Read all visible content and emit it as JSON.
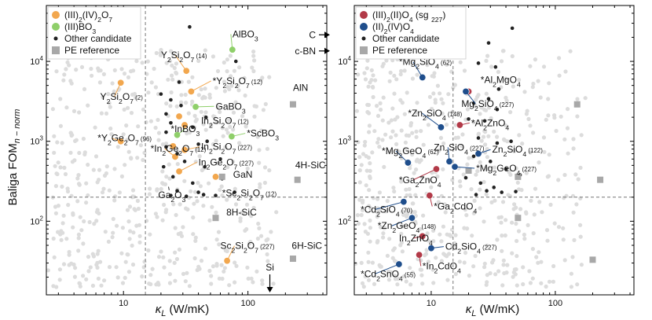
{
  "figure": {
    "ylabel_main": "Baliga FOM",
    "ylabel_sub": "n − norm",
    "xlabel_main": "κ",
    "xlabel_sub": "L",
    "xlabel_unit": " (W/mK)"
  },
  "chart_data": [
    {
      "type": "scatter",
      "panel": "left",
      "xscale": "log",
      "yscale": "log",
      "xlim": [
        2.4,
        430
      ],
      "ylim": [
        12,
        50000
      ],
      "xticks": [
        10,
        100
      ],
      "yticks": [
        100,
        1000,
        10000
      ],
      "dashed_x": 15,
      "dashed_y": 200,
      "legend": [
        {
          "label": "(III)2(IV)2O7",
          "color": "#f2a74e",
          "kind": "circle"
        },
        {
          "label": "(III)BO3",
          "color": "#8fcf6a",
          "kind": "circle"
        },
        {
          "label": "Other candidate",
          "color": "#222222",
          "kind": "dot"
        },
        {
          "label": "PE reference",
          "color": "#a8a8a8",
          "kind": "square"
        }
      ],
      "series": [
        {
          "name": "(III)2(IV)2O7",
          "color": "#f2a74e",
          "points": [
            {
              "x": 9.5,
              "y": 5400,
              "label": "Y2Si2O7 (2)",
              "lx": 6.5,
              "ly": 3300,
              "line": true
            },
            {
              "x": 32,
              "y": 7600,
              "label": "Y2Si2O7 (14)",
              "lx": 20,
              "ly": 11000,
              "line": true
            },
            {
              "x": 35,
              "y": 4200,
              "label": "*Y2Si2O7 (12)",
              "lx": 52,
              "ly": 5200,
              "line": true
            },
            {
              "x": 28,
              "y": 2050,
              "label": "",
              "line": false
            },
            {
              "x": 31,
              "y": 1600,
              "label": "In2Si2O7 (12)",
              "lx": 42,
              "ly": 1650,
              "line": false
            },
            {
              "x": 9.5,
              "y": 1000,
              "label": "*Y2Ge2O7 (96)",
              "lx": 6.2,
              "ly": 1000,
              "line": true
            },
            {
              "x": 25,
              "y": 870,
              "label": "",
              "line": false
            },
            {
              "x": 31,
              "y": 780,
              "label": "In2Si2O7 (227)",
              "lx": 42,
              "ly": 780,
              "line": true
            },
            {
              "x": 26,
              "y": 640,
              "label": "*In2Ge2O7 (12)",
              "lx": 16.5,
              "ly": 740,
              "line": true
            },
            {
              "x": 28,
              "y": 420,
              "label": "In2Ge2O7 (227)",
              "lx": 40,
              "ly": 500,
              "line": true
            },
            {
              "x": 55,
              "y": 360,
              "label": "",
              "line": false
            },
            {
              "x": 68,
              "y": 32,
              "label": "Sc2Si2O7 (227)",
              "lx": 60,
              "ly": 45,
              "line": true
            }
          ]
        },
        {
          "name": "(III)BO3",
          "color": "#8fcf6a",
          "points": [
            {
              "x": 75,
              "y": 14000,
              "label": "AlBO3",
              "lx": 75,
              "ly": 20000,
              "line": true
            },
            {
              "x": 38,
              "y": 2700,
              "label": "GaBO3",
              "lx": 55,
              "ly": 2500,
              "line": true
            },
            {
              "x": 27,
              "y": 1200,
              "label": "*InBO3",
              "lx": 24,
              "ly": 1300,
              "line": true
            },
            {
              "x": 74,
              "y": 1150,
              "label": "*ScBO3",
              "lx": 98,
              "ly": 1150,
              "line": true
            }
          ]
        },
        {
          "name": "Other candidate",
          "color": "#222222",
          "points": [
            {
              "x": 34,
              "y": 27000
            },
            {
              "x": 80,
              "y": 10000
            },
            {
              "x": 28,
              "y": 5500
            },
            {
              "x": 20,
              "y": 3900
            },
            {
              "x": 24,
              "y": 3300
            },
            {
              "x": 29,
              "y": 2800
            },
            {
              "x": 22,
              "y": 2200
            },
            {
              "x": 46,
              "y": 2000
            },
            {
              "x": 24,
              "y": 1700
            },
            {
              "x": 36,
              "y": 1500
            },
            {
              "x": 22,
              "y": 1300
            },
            {
              "x": 47,
              "y": 1000
            },
            {
              "x": 40,
              "y": 920
            },
            {
              "x": 22,
              "y": 850
            },
            {
              "x": 27,
              "y": 700
            },
            {
              "x": 60,
              "y": 600
            },
            {
              "x": 31,
              "y": 560
            },
            {
              "x": 45,
              "y": 480
            },
            {
              "x": 21,
              "y": 480
            },
            {
              "x": 25,
              "y": 360
            },
            {
              "x": 36,
              "y": 300
            },
            {
              "x": 27,
              "y": 240
            },
            {
              "x": 40,
              "y": 230
            },
            {
              "x": 24,
              "y": 210
            },
            {
              "x": 32,
              "y": 205
            },
            {
              "x": 44,
              "y": 215
            },
            {
              "x": 55,
              "y": 210
            },
            {
              "x": 62,
              "y": 340
            },
            {
              "x": 78,
              "y": 230
            }
          ]
        },
        {
          "name": "PE reference",
          "color": "#a8a8a8",
          "points": [
            {
              "x": 230,
              "y": 2900,
              "label": "AlN",
              "lx": 230,
              "ly": 4300
            },
            {
              "x": 62,
              "y": 360,
              "label": "GaN",
              "lx": 76,
              "ly": 350
            },
            {
              "x": 250,
              "y": 330,
              "label": "4H-SiC",
              "lx": 240,
              "ly": 460
            },
            {
              "x": 55,
              "y": 110,
              "label": "8H-SiC",
              "lx": 67,
              "ly": 118
            },
            {
              "x": 230,
              "y": 34,
              "label": "6H-SiC",
              "lx": 225,
              "ly": 45
            }
          ]
        }
      ],
      "annotations": [
        {
          "text": "Ga2O3",
          "x": 23,
          "y": 270,
          "lx": 19,
          "ly": 195,
          "line": true
        },
        {
          "text": "*Sc2Si2O7 (12)",
          "x": 68,
          "y": 245,
          "lx": 62,
          "ly": 205,
          "line": false
        }
      ],
      "arrows": [
        {
          "label": "C",
          "direction": "right",
          "y": 21500
        },
        {
          "label": "c-BN",
          "direction": "right",
          "y": 13500
        },
        {
          "label": "Si",
          "direction": "down",
          "x": 150
        }
      ]
    },
    {
      "type": "scatter",
      "panel": "right",
      "xscale": "log",
      "yscale": "log",
      "xlim": [
        2.4,
        430
      ],
      "ylim": [
        12,
        50000
      ],
      "xticks": [
        10,
        100
      ],
      "yticks": [
        100,
        1000,
        10000
      ],
      "dashed_x": 15,
      "dashed_y": 200,
      "legend": [
        {
          "label": "(III)2(II)O4",
          "sub": "(sg 227)",
          "color": "#b23a48",
          "kind": "circle"
        },
        {
          "label": "(II)2(IV)O4",
          "sub": "",
          "color": "#1f4e8c",
          "kind": "circle"
        },
        {
          "label": "Other candidate",
          "sub": "",
          "color": "#222222",
          "kind": "dot"
        },
        {
          "label": "PE reference",
          "sub": "",
          "color": "#a8a8a8",
          "kind": "square"
        }
      ],
      "series": [
        {
          "name": "(III)2(II)O4",
          "color": "#b23a48",
          "points": [
            {
              "x": 20,
              "y": 4200,
              "label": "*Al2MgO4",
              "lx": 25,
              "ly": 5400,
              "line": false
            },
            {
              "x": 17,
              "y": 1600,
              "label": "*Al2ZnO4",
              "lx": 21,
              "ly": 1550,
              "line": true
            },
            {
              "x": 11,
              "y": 450,
              "label": "*Ga2ZnO4",
              "lx": 5.5,
              "ly": 300,
              "line": true
            },
            {
              "x": 9.7,
              "y": 210,
              "label": "*Ga2CdO4",
              "lx": 10.5,
              "ly": 140,
              "line": true
            },
            {
              "x": 8.5,
              "y": 65,
              "label": "In2ZnO4",
              "lx": 5.5,
              "ly": 56,
              "line": true
            },
            {
              "x": 8,
              "y": 38,
              "label": "*In2CdO4",
              "lx": 8.5,
              "ly": 25,
              "line": true
            }
          ]
        },
        {
          "name": "(II)2(IV)O4",
          "color": "#1f4e8c",
          "points": [
            {
              "x": 8.5,
              "y": 6300,
              "label": "*Mg2SiO4",
              "sub": "(62)",
              "lx": 5.5,
              "ly": 9000,
              "line": true
            },
            {
              "x": 19,
              "y": 4200,
              "label": "Mg2SiO4",
              "sub": "(227)",
              "lx": 17.5,
              "ly": 2700,
              "line": true
            },
            {
              "x": 12,
              "y": 1500,
              "label": "*Zn2SiO4",
              "sub": "(148)",
              "lx": 6.5,
              "ly": 2050,
              "line": true
            },
            {
              "x": 6.5,
              "y": 540,
              "label": "*Mg2GeO4",
              "sub": "(62)",
              "lx": 4.0,
              "ly": 690,
              "line": true
            },
            {
              "x": 14,
              "y": 560,
              "label": "Zn2SiO4",
              "sub": "(227)",
              "lx": 10.5,
              "ly": 770,
              "line": true
            },
            {
              "x": 15.5,
              "y": 480,
              "label": "*Mg2GeO4",
              "sub": "(227)",
              "lx": 23,
              "ly": 420,
              "line": true
            },
            {
              "x": 24,
              "y": 700,
              "label": "Zn2SiO4",
              "sub": "(122)",
              "lx": 31,
              "ly": 720,
              "line": true
            },
            {
              "x": 6,
              "y": 175,
              "label": "*Cd2SiO4",
              "sub": "(70)",
              "lx": 2.7,
              "ly": 128,
              "line": true
            },
            {
              "x": 7,
              "y": 110,
              "label": "*Zn2GeO4",
              "sub": "(148)",
              "lx": 3.7,
              "ly": 80,
              "line": true
            },
            {
              "x": 10,
              "y": 46,
              "label": "Cd2SiO4",
              "sub": "(227)",
              "lx": 13,
              "ly": 44,
              "line": true
            },
            {
              "x": 5.5,
              "y": 29,
              "label": "*Cd2SnO4",
              "sub": "(55)",
              "lx": 2.7,
              "ly": 20,
              "line": true
            }
          ]
        },
        {
          "name": "Other candidate",
          "color": "#222222",
          "points": [
            {
              "x": 45,
              "y": 26000
            },
            {
              "x": 29,
              "y": 17000
            },
            {
              "x": 24,
              "y": 9500
            },
            {
              "x": 33,
              "y": 8500
            },
            {
              "x": 35,
              "y": 4500
            },
            {
              "x": 29,
              "y": 3400
            },
            {
              "x": 22,
              "y": 3000
            },
            {
              "x": 34,
              "y": 2500
            },
            {
              "x": 20,
              "y": 1900
            },
            {
              "x": 27,
              "y": 1800
            },
            {
              "x": 24,
              "y": 1100
            },
            {
              "x": 34,
              "y": 950
            },
            {
              "x": 44,
              "y": 1000
            },
            {
              "x": 22,
              "y": 650
            },
            {
              "x": 30,
              "y": 560
            },
            {
              "x": 40,
              "y": 450
            },
            {
              "x": 52,
              "y": 380
            },
            {
              "x": 19,
              "y": 350
            },
            {
              "x": 25,
              "y": 300
            },
            {
              "x": 28,
              "y": 240
            },
            {
              "x": 32,
              "y": 265
            },
            {
              "x": 37,
              "y": 230
            },
            {
              "x": 48,
              "y": 235
            },
            {
              "x": 23,
              "y": 215
            }
          ]
        },
        {
          "name": "PE reference",
          "color": "#a8a8a8",
          "points": [
            {
              "x": 150,
              "y": 2900
            },
            {
              "x": 230,
              "y": 330
            },
            {
              "x": 20,
              "y": 430
            },
            {
              "x": 50,
              "y": 360
            },
            {
              "x": 50,
              "y": 110
            },
            {
              "x": 200,
              "y": 33
            }
          ]
        }
      ]
    }
  ]
}
